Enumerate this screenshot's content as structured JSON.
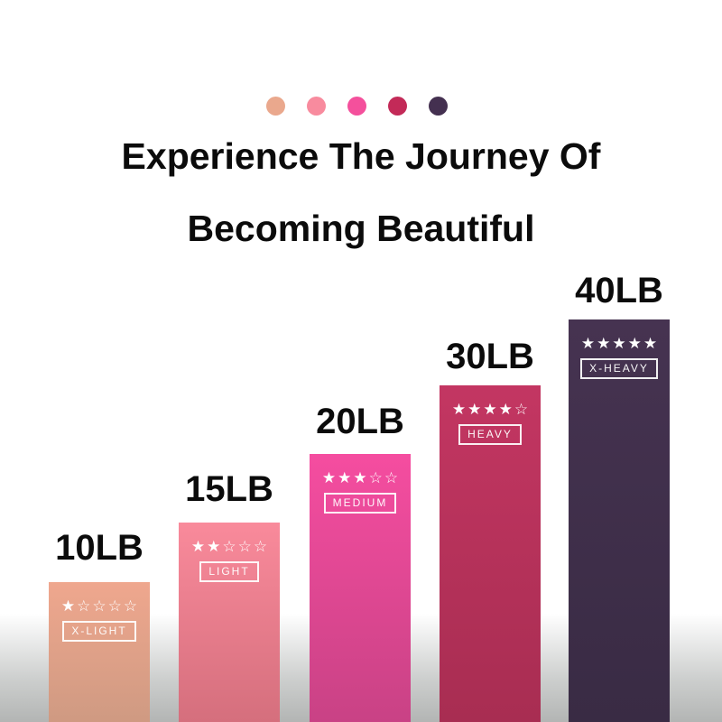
{
  "title": {
    "line1": "Experience The Journey Of",
    "line2": "Becoming Beautiful"
  },
  "palette_dots": [
    {
      "name": "x-light",
      "color": "#eaa88d"
    },
    {
      "name": "light",
      "color": "#f88b9e"
    },
    {
      "name": "medium",
      "color": "#f4509c"
    },
    {
      "name": "heavy",
      "color": "#c32a58"
    },
    {
      "name": "x-heavy",
      "color": "#443050"
    }
  ],
  "bands": [
    {
      "weight": "10LB",
      "stars": "★☆☆☆☆",
      "tag": "X-LIGHT",
      "color_top": "#efa78e",
      "color_bottom": "#cf9a82"
    },
    {
      "weight": "15LB",
      "stars": "★★☆☆☆",
      "tag": "LIGHT",
      "color_top": "#f98a9b",
      "color_bottom": "#d56f7d"
    },
    {
      "weight": "20LB",
      "stars": "★★★☆☆",
      "tag": "MEDIUM",
      "color_top": "#f54da0",
      "color_bottom": "#c94285"
    },
    {
      "weight": "30LB",
      "stars": "★★★★☆",
      "tag": "HEAVY",
      "color_top": "#c33662",
      "color_bottom": "#a82d52"
    },
    {
      "weight": "40LB",
      "stars": "★★★★★",
      "tag": "X-HEAVY",
      "color_top": "#463351",
      "color_bottom": "#392b44"
    }
  ],
  "chart_data": {
    "type": "bar",
    "title": "Experience The Journey Of Becoming Beautiful",
    "categories": [
      "X-LIGHT",
      "LIGHT",
      "MEDIUM",
      "HEAVY",
      "X-HEAVY"
    ],
    "values": [
      10,
      15,
      20,
      30,
      40
    ],
    "unit": "LB",
    "bar_labels": [
      "10LB",
      "15LB",
      "20LB",
      "30LB",
      "40LB"
    ],
    "star_ratings": [
      1,
      2,
      3,
      4,
      5
    ],
    "stars_max": 5,
    "bar_colors": [
      "#efa78e",
      "#f98a9b",
      "#f54da0",
      "#c33662",
      "#463351"
    ],
    "xlabel": "",
    "ylabel": "",
    "grid": false,
    "legend_position": "none",
    "orientation": "vertical",
    "note": "bars anchored to bottom edge of image, labels above bars"
  },
  "background": {
    "top_color": "#ffffff",
    "bottom_color": "#b3b5b4"
  }
}
